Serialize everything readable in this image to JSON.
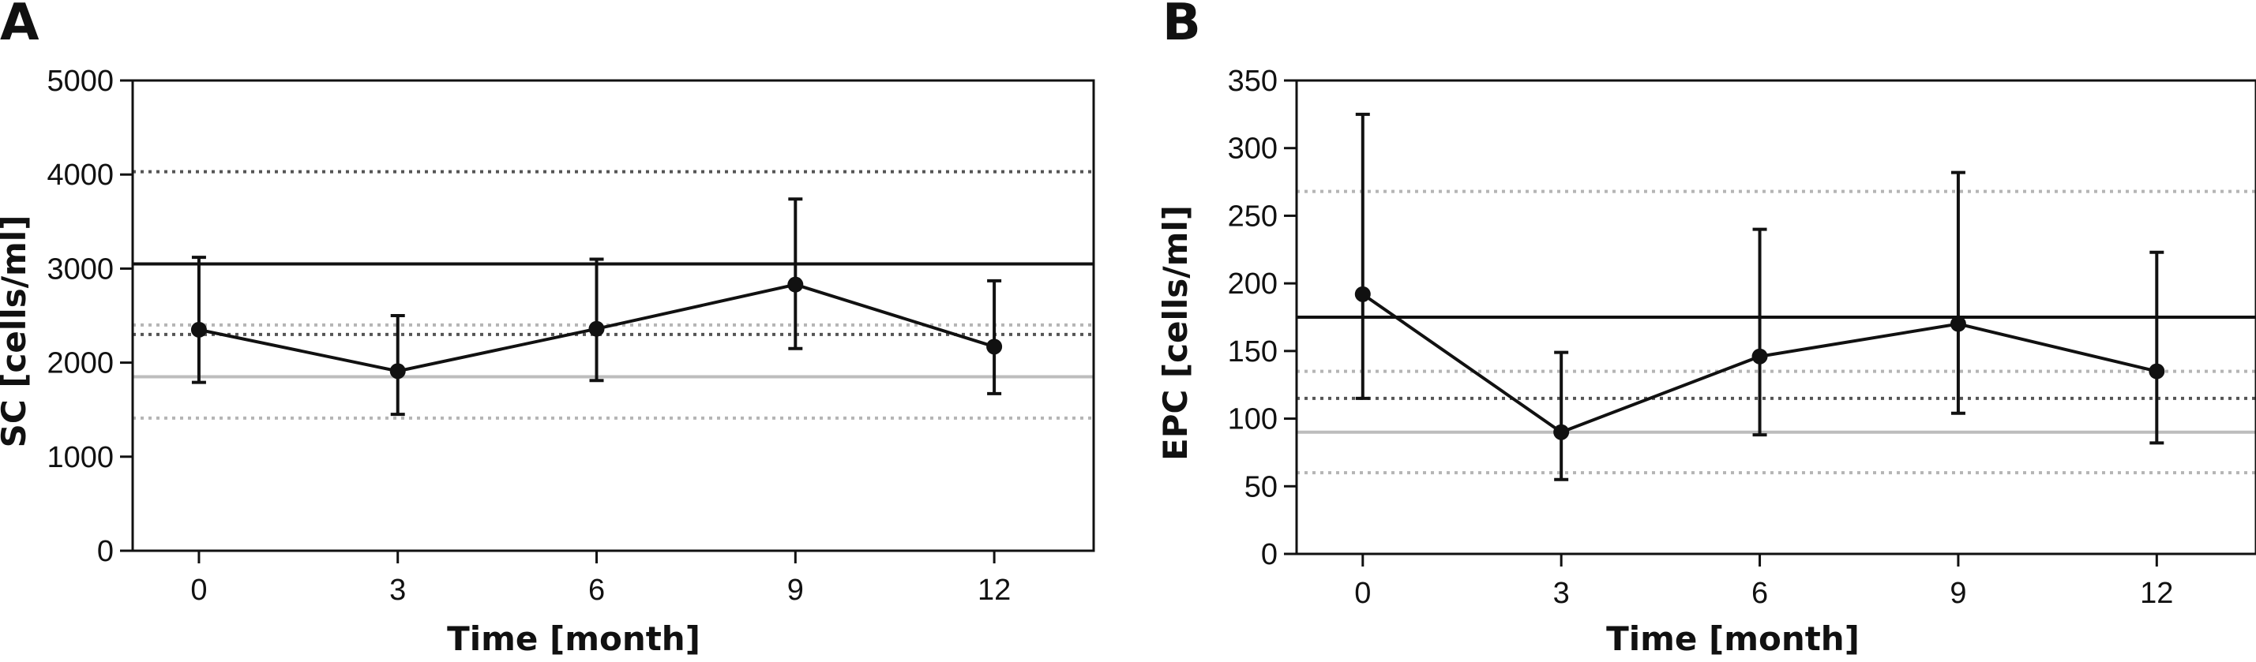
{
  "chart_data": [
    {
      "type": "line",
      "panel_label": "A",
      "xlabel": "Time [month]",
      "ylabel": "SC [cells/ml]",
      "categories": [
        "0",
        "3",
        "6",
        "9",
        "12"
      ],
      "xlim": [
        -1,
        13.5
      ],
      "ylim": [
        0,
        5000
      ],
      "y_ticks": [
        "0",
        "1000",
        "2000",
        "3000",
        "4000",
        "5000"
      ],
      "grid": false,
      "series": [
        {
          "x": [
            0,
            3,
            6,
            9,
            12
          ],
          "values": [
            2350,
            1910,
            2360,
            2830,
            2170
          ],
          "error_low": [
            1790,
            1450,
            1810,
            2150,
            1670
          ],
          "error_high": [
            3120,
            2500,
            3100,
            3740,
            2870
          ],
          "color": "#111111"
        }
      ],
      "reference_lines": [
        {
          "y": 3050,
          "style": "solid",
          "color": "#111111"
        },
        {
          "y": 4030,
          "style": "dotted",
          "color": "#555555"
        },
        {
          "y": 2300,
          "style": "dotted",
          "color": "#555555"
        },
        {
          "y": 1850,
          "style": "solid",
          "color": "#bdbdbd"
        },
        {
          "y": 2400,
          "style": "dotted",
          "color": "#b5b5b5"
        },
        {
          "y": 1410,
          "style": "dotted",
          "color": "#b5b5b5"
        }
      ]
    },
    {
      "type": "line",
      "panel_label": "B",
      "xlabel": "Time [month]",
      "ylabel": "EPC [cells/ml]",
      "categories": [
        "0",
        "3",
        "6",
        "9",
        "12"
      ],
      "xlim": [
        -1,
        13.5
      ],
      "ylim": [
        0,
        350
      ],
      "y_ticks": [
        "0",
        "50",
        "100",
        "150",
        "200",
        "250",
        "300",
        "350"
      ],
      "grid": false,
      "series": [
        {
          "x": [
            0,
            3,
            6,
            9,
            12
          ],
          "values": [
            192,
            90,
            146,
            170,
            135
          ],
          "error_low": [
            115,
            55,
            88,
            104,
            82
          ],
          "error_high": [
            325,
            149,
            240,
            282,
            223
          ],
          "color": "#111111"
        }
      ],
      "reference_lines": [
        {
          "y": 175,
          "style": "solid",
          "color": "#111111"
        },
        {
          "y": 115,
          "style": "dotted",
          "color": "#555555"
        },
        {
          "y": 90,
          "style": "solid",
          "color": "#bdbdbd"
        },
        {
          "y": 268,
          "style": "dotted",
          "color": "#b5b5b5"
        },
        {
          "y": 135,
          "style": "dotted",
          "color": "#b5b5b5"
        },
        {
          "y": 60,
          "style": "dotted",
          "color": "#b5b5b5"
        }
      ]
    }
  ]
}
